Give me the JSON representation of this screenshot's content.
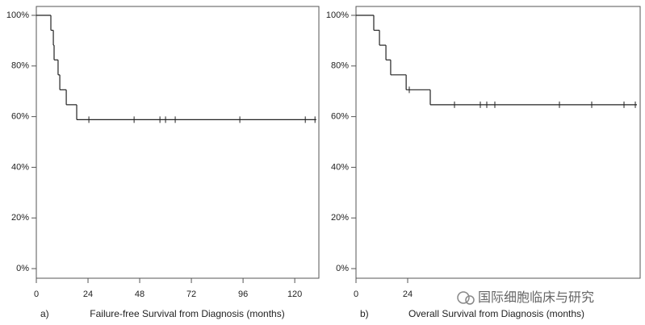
{
  "chart_data": [
    {
      "type": "survival",
      "panel_label": "a)",
      "x_label": "Failure-free Survival from Diagnosis (months)",
      "xlim": [
        0,
        131.2
      ],
      "ylim": [
        -3.8,
        103.5
      ],
      "xticks": [
        0,
        24,
        48,
        72,
        96,
        120
      ],
      "yticks": [
        {
          "value": 0,
          "label": "0%"
        },
        {
          "value": 20,
          "label": "20%"
        },
        {
          "value": 40,
          "label": "40%"
        },
        {
          "value": 60,
          "label": "60%"
        },
        {
          "value": 80,
          "label": "80%"
        },
        {
          "value": 100,
          "label": "100%"
        }
      ],
      "color": "#222222",
      "x": [
        0,
        6.75,
        7.9,
        8.25,
        10.1,
        10.9,
        13.9,
        18.75,
        130
      ],
      "values": [
        100,
        94.1,
        88.2,
        82.4,
        76.5,
        70.6,
        64.7,
        58.8,
        58.8
      ],
      "censored": {
        "x": [
          24.4,
          45.4,
          57.4,
          60,
          64.5,
          94.5,
          124.9,
          129.4
        ],
        "values": [
          58.8,
          58.8,
          58.8,
          58.8,
          58.8,
          58.8,
          58.8,
          58.8
        ]
      }
    },
    {
      "type": "survival",
      "panel_label": "b)",
      "x_label": "Overall Survival from Diagnosis (months)",
      "xlim": [
        0,
        132
      ],
      "ylim": [
        -3.8,
        103.5
      ],
      "xticks": [
        0,
        24
      ],
      "yticks": [
        {
          "value": 0,
          "label": "0%"
        },
        {
          "value": 20,
          "label": "20%"
        },
        {
          "value": 40,
          "label": "40%"
        },
        {
          "value": 60,
          "label": "60%"
        },
        {
          "value": 80,
          "label": "80%"
        },
        {
          "value": 100,
          "label": "100%"
        }
      ],
      "color": "#222222",
      "x": [
        0,
        8.25,
        10.9,
        13.9,
        16.1,
        23.3,
        34.5,
        130.5
      ],
      "values": [
        100,
        94.1,
        88.2,
        82.4,
        76.5,
        70.6,
        64.7,
        64.7
      ],
      "censored": {
        "x": [
          24.75,
          45.75,
          57.75,
          60.75,
          64.5,
          94.5,
          109.5,
          124.5,
          129.75
        ],
        "values": [
          70.6,
          64.7,
          64.7,
          64.7,
          64.7,
          64.7,
          64.7,
          64.7,
          64.7
        ]
      }
    }
  ],
  "watermark": "国际细胞临床与研究"
}
